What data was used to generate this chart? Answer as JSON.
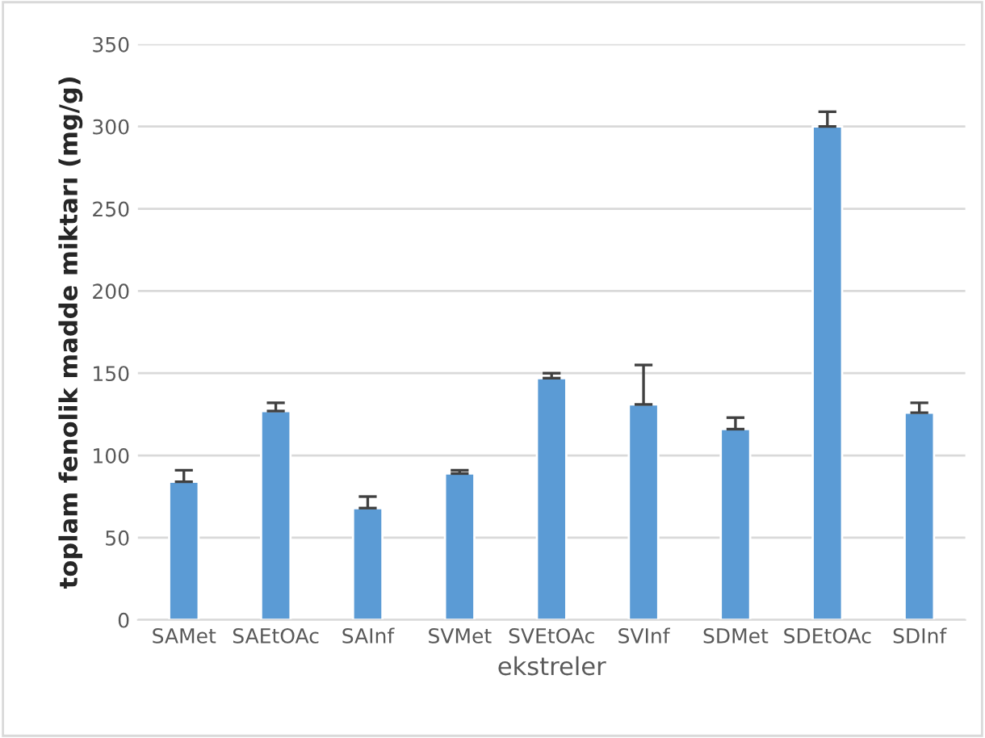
{
  "chart_data": {
    "type": "bar",
    "xlabel": "ekstreler",
    "ylabel": "toplam fenolik madde miktarı (mg/g)",
    "categories": [
      "SAMet",
      "SAEtOAc",
      "SAInf",
      "SVMet",
      "SVEtOAc",
      "SVInf",
      "SDMet",
      "SDEtOAc",
      "SDInf"
    ],
    "values": [
      84,
      127,
      68,
      89,
      147,
      131,
      116,
      300,
      126
    ],
    "errors": [
      [
        84,
        91
      ],
      [
        127,
        132
      ],
      [
        68,
        75
      ],
      [
        89,
        91
      ],
      [
        147,
        150
      ],
      [
        131,
        155
      ],
      [
        116,
        123
      ],
      [
        300,
        309
      ],
      [
        126,
        132
      ]
    ],
    "color": "#5b9bd5",
    "ylim": [
      0,
      350
    ],
    "yticks": [
      0,
      50,
      100,
      150,
      200,
      250,
      300,
      350
    ],
    "grid": "y"
  }
}
